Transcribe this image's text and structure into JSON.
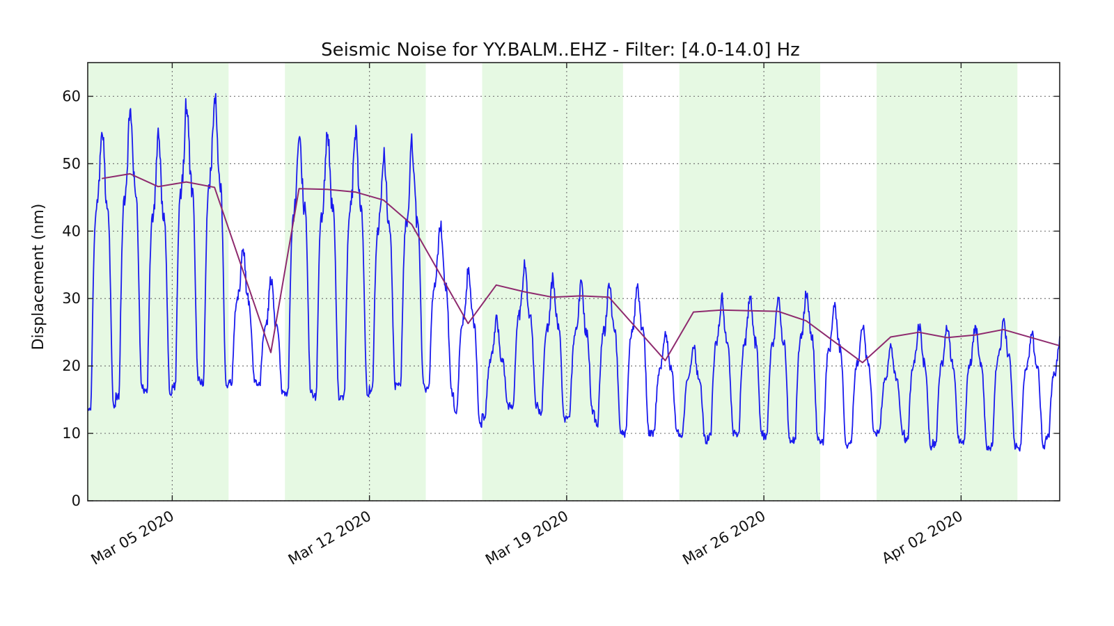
{
  "chart_data": {
    "type": "line",
    "title": "Seismic Noise for YY.BALM..EHZ - Filter: [4.0-14.0] Hz",
    "xlabel": "",
    "ylabel": "Displacement (nm)",
    "xlim": [
      "2020-03-02",
      "2020-04-05"
    ],
    "ylim": [
      0,
      65
    ],
    "yticks": [
      0,
      10,
      20,
      30,
      40,
      50,
      60
    ],
    "xticks": [
      {
        "date": "2020-03-05",
        "label": "Mar 05 2020"
      },
      {
        "date": "2020-03-12",
        "label": "Mar 12 2020"
      },
      {
        "date": "2020-03-19",
        "label": "Mar 19 2020"
      },
      {
        "date": "2020-03-26",
        "label": "Mar 26 2020"
      },
      {
        "date": "2020-04-02",
        "label": "Apr 02 2020"
      }
    ],
    "grid": true,
    "weekday_bands": [
      [
        "2020-03-02",
        "2020-03-07"
      ],
      [
        "2020-03-09",
        "2020-03-14"
      ],
      [
        "2020-03-16",
        "2020-03-21"
      ],
      [
        "2020-03-23",
        "2020-03-28"
      ],
      [
        "2020-03-30",
        "2020-04-04"
      ]
    ],
    "band_color": "#e6f9e3",
    "series": [
      {
        "color": "#1a1aee",
        "daily_points": [
          {
            "date": "2020-03-02",
            "peak": 55,
            "trough": 14
          },
          {
            "date": "2020-03-03",
            "peak": 58,
            "trough": 17
          },
          {
            "date": "2020-03-04",
            "peak": 54,
            "trough": 16
          },
          {
            "date": "2020-03-05",
            "peak": 59,
            "trough": 18
          },
          {
            "date": "2020-03-06",
            "peak": 60,
            "trough": 17
          },
          {
            "date": "2020-03-07",
            "peak": 38,
            "trough": 18
          },
          {
            "date": "2020-03-08",
            "peak": 33,
            "trough": 16
          },
          {
            "date": "2020-03-09",
            "peak": 55,
            "trough": 16
          },
          {
            "date": "2020-03-10",
            "peak": 55,
            "trough": 15
          },
          {
            "date": "2020-03-11",
            "peak": 55,
            "trough": 16
          },
          {
            "date": "2020-03-12",
            "peak": 52,
            "trough": 17
          },
          {
            "date": "2020-03-13",
            "peak": 53,
            "trough": 17
          },
          {
            "date": "2020-03-14",
            "peak": 41,
            "trough": 16
          },
          {
            "date": "2020-03-15",
            "peak": 34,
            "trough": 11
          },
          {
            "date": "2020-03-16",
            "peak": 27,
            "trough": 14
          },
          {
            "date": "2020-03-17",
            "peak": 35,
            "trough": 14
          },
          {
            "date": "2020-03-18",
            "peak": 33,
            "trough": 12
          },
          {
            "date": "2020-03-19",
            "peak": 32,
            "trough": 13
          },
          {
            "date": "2020-03-20",
            "peak": 32,
            "trough": 10
          },
          {
            "date": "2020-03-21",
            "peak": 32,
            "trough": 10
          },
          {
            "date": "2020-03-22",
            "peak": 25,
            "trough": 10
          },
          {
            "date": "2020-03-23",
            "peak": 23,
            "trough": 9
          },
          {
            "date": "2020-03-24",
            "peak": 30,
            "trough": 10
          },
          {
            "date": "2020-03-25",
            "peak": 30,
            "trough": 10
          },
          {
            "date": "2020-03-26",
            "peak": 30,
            "trough": 9
          },
          {
            "date": "2020-03-27",
            "peak": 31,
            "trough": 9
          },
          {
            "date": "2020-03-28",
            "peak": 29,
            "trough": 8
          },
          {
            "date": "2020-03-29",
            "peak": 26,
            "trough": 10
          },
          {
            "date": "2020-03-30",
            "peak": 23,
            "trough": 10
          },
          {
            "date": "2020-03-31",
            "peak": 26,
            "trough": 8
          },
          {
            "date": "2020-04-01",
            "peak": 26,
            "trough": 9
          },
          {
            "date": "2020-04-02",
            "peak": 26,
            "trough": 8
          },
          {
            "date": "2020-04-03",
            "peak": 27,
            "trough": 8
          },
          {
            "date": "2020-04-04",
            "peak": 25,
            "trough": 8
          },
          {
            "date": "2020-04-05",
            "peak": 24,
            "trough": 11
          }
        ]
      },
      {
        "color": "#8e2a6e",
        "x": [
          "2020-03-02",
          "2020-03-03",
          "2020-03-04",
          "2020-03-05",
          "2020-03-06",
          "2020-03-08",
          "2020-03-09",
          "2020-03-10",
          "2020-03-11",
          "2020-03-12",
          "2020-03-13",
          "2020-03-15",
          "2020-03-16",
          "2020-03-17",
          "2020-03-18",
          "2020-03-19",
          "2020-03-20",
          "2020-03-22",
          "2020-03-23",
          "2020-03-24",
          "2020-03-25",
          "2020-03-26",
          "2020-03-27",
          "2020-03-29",
          "2020-03-30",
          "2020-03-31",
          "2020-04-01",
          "2020-04-02",
          "2020-04-03",
          "2020-04-05"
        ],
        "values": [
          47.8,
          48.5,
          46.6,
          47.3,
          46.5,
          22.0,
          46.3,
          46.2,
          45.8,
          44.6,
          41.0,
          26.3,
          32.0,
          31.0,
          30.2,
          30.4,
          30.2,
          20.8,
          28.0,
          28.3,
          28.2,
          28.1,
          26.7,
          20.5,
          24.3,
          25.0,
          24.2,
          24.6,
          25.4,
          23.0
        ]
      }
    ]
  }
}
